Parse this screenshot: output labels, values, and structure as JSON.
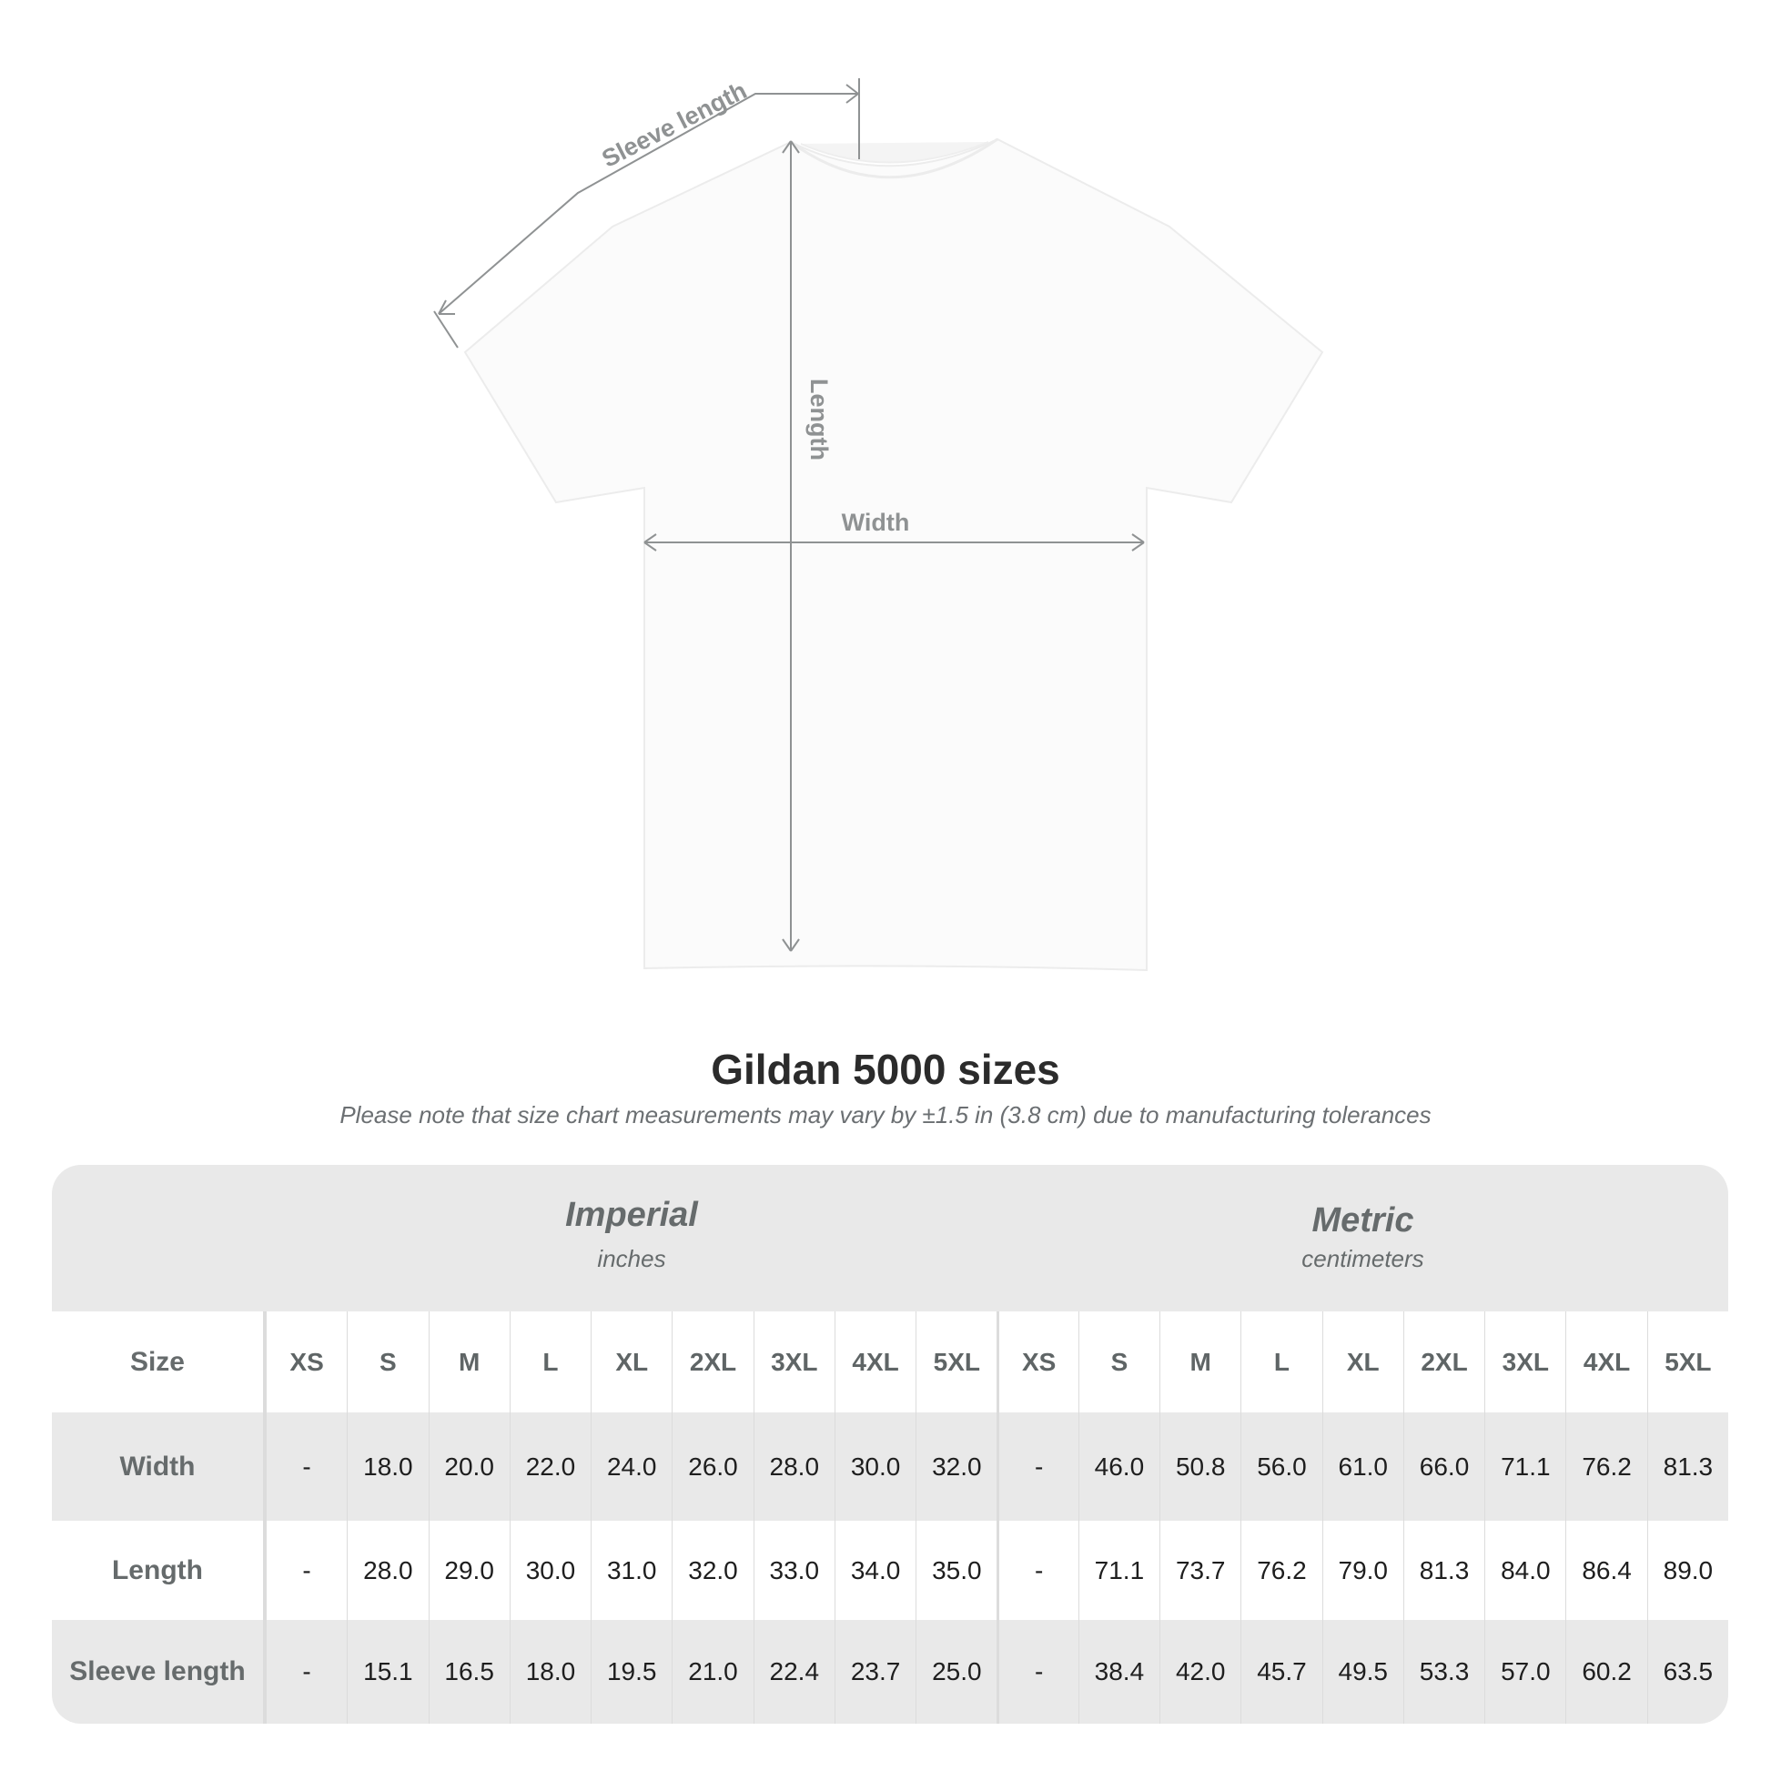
{
  "diagram": {
    "labels": {
      "sleeve": "Sleeve length",
      "length": "Length",
      "width": "Width"
    },
    "line_color": "#8f9293"
  },
  "title": "Gildan 5000 sizes",
  "subtitle": "Please note that size chart measurements may vary by ±1.5 in (3.8 cm) due to manufacturing tolerances",
  "table": {
    "imperial": {
      "name": "Imperial",
      "unit": "inches"
    },
    "metric": {
      "name": "Metric",
      "unit": "centimeters"
    },
    "size_label": "Size",
    "sizes": [
      "XS",
      "S",
      "M",
      "L",
      "XL",
      "2XL",
      "3XL",
      "4XL",
      "5XL"
    ],
    "rows": [
      {
        "label": "Width",
        "imperial": [
          "-",
          "18.0",
          "20.0",
          "22.0",
          "24.0",
          "26.0",
          "28.0",
          "30.0",
          "32.0"
        ],
        "metric": [
          "-",
          "46.0",
          "50.8",
          "56.0",
          "61.0",
          "66.0",
          "71.1",
          "76.2",
          "81.3"
        ]
      },
      {
        "label": "Length",
        "imperial": [
          "-",
          "28.0",
          "29.0",
          "30.0",
          "31.0",
          "32.0",
          "33.0",
          "34.0",
          "35.0"
        ],
        "metric": [
          "-",
          "71.1",
          "73.7",
          "76.2",
          "79.0",
          "81.3",
          "84.0",
          "86.4",
          "89.0"
        ]
      },
      {
        "label": "Sleeve length",
        "imperial": [
          "-",
          "15.1",
          "16.5",
          "18.0",
          "19.5",
          "21.0",
          "22.4",
          "23.7",
          "25.0"
        ],
        "metric": [
          "-",
          "38.4",
          "42.0",
          "45.7",
          "49.5",
          "53.3",
          "57.0",
          "60.2",
          "63.5"
        ]
      }
    ],
    "colors": {
      "band": "#e9e9e9",
      "label_text": "#666b6c",
      "value_text": "#1e1e1e"
    }
  }
}
